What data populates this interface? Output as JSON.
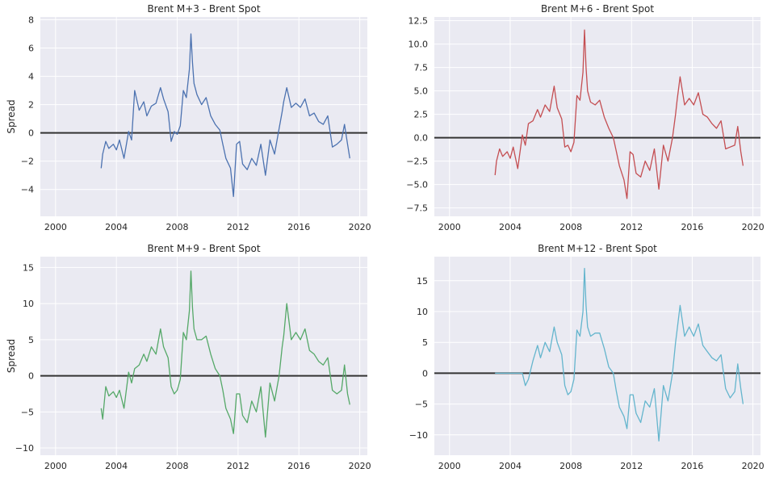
{
  "chart_data": [
    {
      "type": "line",
      "title": "Brent M+3 - Brent Spot",
      "ylabel": "Spread",
      "xlabel": "",
      "x_range": [
        1999.0,
        2020.5
      ],
      "ylim": [
        -5.9,
        8.2
      ],
      "x_ticks": [
        2000,
        2004,
        2008,
        2012,
        2016,
        2020
      ],
      "x_tick_labels": [
        "2000",
        "2004",
        "2008",
        "2012",
        "2016",
        "2020"
      ],
      "y_ticks": [
        -4,
        -2,
        0,
        2,
        4,
        6,
        8
      ],
      "y_tick_labels": [
        "−4",
        "−2",
        "0",
        "2",
        "4",
        "6",
        "8"
      ],
      "grid": true,
      "reference_line_y": 0,
      "color": "#4C72B0",
      "series": [
        {
          "x": [
            2003.0,
            2003.1,
            2003.3,
            2003.5,
            2003.8,
            2004.0,
            2004.2,
            2004.5,
            2004.8,
            2005.0,
            2005.2,
            2005.5,
            2005.8,
            2006.0,
            2006.3,
            2006.6,
            2006.9,
            2007.1,
            2007.4,
            2007.6,
            2007.8,
            2008.0,
            2008.2,
            2008.4,
            2008.6,
            2008.8,
            2008.9,
            2009.0,
            2009.1,
            2009.3,
            2009.6,
            2009.9,
            2010.2,
            2010.5,
            2010.8,
            2011.0,
            2011.2,
            2011.5,
            2011.7,
            2011.9,
            2012.1,
            2012.3,
            2012.6,
            2012.9,
            2013.2,
            2013.5,
            2013.8,
            2014.1,
            2014.4,
            2014.7,
            2014.9,
            2015.0,
            2015.2,
            2015.5,
            2015.8,
            2016.1,
            2016.4,
            2016.7,
            2017.0,
            2017.3,
            2017.6,
            2017.9,
            2018.2,
            2018.5,
            2018.8,
            2019.0,
            2019.2,
            2019.35
          ],
          "y": [
            -2.5,
            -1.5,
            -0.6,
            -1.1,
            -0.8,
            -1.2,
            -0.5,
            -1.8,
            0.1,
            -0.5,
            3.0,
            1.6,
            2.2,
            1.2,
            1.9,
            2.1,
            3.2,
            2.4,
            1.5,
            -0.6,
            0.1,
            -0.1,
            0.5,
            3.0,
            2.5,
            4.5,
            7.0,
            5.0,
            3.5,
            2.7,
            2.0,
            2.5,
            1.2,
            0.6,
            0.2,
            -0.8,
            -1.8,
            -2.5,
            -4.5,
            -0.8,
            -0.6,
            -2.2,
            -2.6,
            -1.8,
            -2.3,
            -0.8,
            -3.0,
            -0.5,
            -1.5,
            0.3,
            1.5,
            2.2,
            3.2,
            1.8,
            2.1,
            1.8,
            2.4,
            1.2,
            1.4,
            0.8,
            0.6,
            1.2,
            -1.0,
            -0.8,
            -0.5,
            0.6,
            -0.8,
            -1.8
          ]
        }
      ]
    },
    {
      "type": "line",
      "title": "Brent M+6 - Brent Spot",
      "ylabel": "",
      "xlabel": "",
      "x_range": [
        1999.0,
        2020.5
      ],
      "ylim": [
        -8.4,
        12.9
      ],
      "x_ticks": [
        2000,
        2004,
        2008,
        2012,
        2016,
        2020
      ],
      "x_tick_labels": [
        "2000",
        "2004",
        "2008",
        "2012",
        "2016",
        "2020"
      ],
      "y_ticks": [
        -7.5,
        -5.0,
        -2.5,
        0.0,
        2.5,
        5.0,
        7.5,
        10.0,
        12.5
      ],
      "y_tick_labels": [
        "−7.5",
        "−5.0",
        "−2.5",
        "0.0",
        "2.5",
        "5.0",
        "7.5",
        "10.0",
        "12.5"
      ],
      "grid": true,
      "reference_line_y": 0,
      "color": "#C44E52",
      "series": [
        {
          "x": [
            2003.0,
            2003.1,
            2003.3,
            2003.5,
            2003.8,
            2004.0,
            2004.2,
            2004.5,
            2004.8,
            2005.0,
            2005.2,
            2005.5,
            2005.8,
            2006.0,
            2006.3,
            2006.6,
            2006.9,
            2007.1,
            2007.4,
            2007.6,
            2007.8,
            2008.0,
            2008.2,
            2008.4,
            2008.6,
            2008.8,
            2008.9,
            2009.0,
            2009.1,
            2009.3,
            2009.6,
            2009.9,
            2010.2,
            2010.5,
            2010.8,
            2011.0,
            2011.2,
            2011.5,
            2011.7,
            2011.9,
            2012.1,
            2012.3,
            2012.6,
            2012.9,
            2013.2,
            2013.5,
            2013.8,
            2014.1,
            2014.4,
            2014.7,
            2014.9,
            2015.0,
            2015.2,
            2015.5,
            2015.8,
            2016.1,
            2016.4,
            2016.7,
            2017.0,
            2017.3,
            2017.6,
            2017.9,
            2018.2,
            2018.5,
            2018.8,
            2019.0,
            2019.2,
            2019.35
          ],
          "y": [
            -4.0,
            -2.5,
            -1.2,
            -2.0,
            -1.5,
            -2.2,
            -1.0,
            -3.3,
            0.3,
            -0.8,
            1.5,
            1.8,
            3.0,
            2.2,
            3.5,
            2.8,
            5.5,
            3.2,
            2.0,
            -1.0,
            -0.8,
            -1.5,
            -0.5,
            4.5,
            4.0,
            7.0,
            11.5,
            7.5,
            5.0,
            3.8,
            3.5,
            4.0,
            2.2,
            1.0,
            0.0,
            -1.5,
            -3.0,
            -4.5,
            -6.5,
            -1.5,
            -1.8,
            -3.8,
            -4.2,
            -2.5,
            -3.5,
            -1.2,
            -5.5,
            -0.8,
            -2.5,
            0.0,
            2.5,
            4.0,
            6.5,
            3.5,
            4.2,
            3.5,
            4.8,
            2.5,
            2.2,
            1.5,
            1.0,
            1.8,
            -1.2,
            -1.0,
            -0.8,
            1.2,
            -1.5,
            -3.0
          ]
        }
      ]
    },
    {
      "type": "line",
      "title": "Brent M+9 - Brent Spot",
      "ylabel": "Spread",
      "xlabel": "",
      "x_range": [
        1999.0,
        2020.5
      ],
      "ylim": [
        -11.0,
        16.5
      ],
      "x_ticks": [
        2000,
        2004,
        2008,
        2012,
        2016,
        2020
      ],
      "x_tick_labels": [
        "2000",
        "2004",
        "2008",
        "2012",
        "2016",
        "2020"
      ],
      "y_ticks": [
        -10,
        -5,
        0,
        5,
        10,
        15
      ],
      "y_tick_labels": [
        "−10",
        "−5",
        "0",
        "5",
        "10",
        "15"
      ],
      "grid": true,
      "reference_line_y": 0,
      "color": "#55A868",
      "series": [
        {
          "x": [
            2003.0,
            2003.1,
            2003.3,
            2003.5,
            2003.8,
            2004.0,
            2004.2,
            2004.5,
            2004.8,
            2005.0,
            2005.2,
            2005.5,
            2005.8,
            2006.0,
            2006.3,
            2006.6,
            2006.9,
            2007.1,
            2007.4,
            2007.6,
            2007.8,
            2008.0,
            2008.2,
            2008.4,
            2008.6,
            2008.8,
            2008.9,
            2009.0,
            2009.1,
            2009.3,
            2009.6,
            2009.9,
            2010.2,
            2010.5,
            2010.8,
            2011.0,
            2011.2,
            2011.5,
            2011.7,
            2011.9,
            2012.1,
            2012.3,
            2012.6,
            2012.9,
            2013.2,
            2013.5,
            2013.8,
            2014.1,
            2014.4,
            2014.7,
            2014.9,
            2015.0,
            2015.2,
            2015.5,
            2015.8,
            2016.1,
            2016.4,
            2016.7,
            2017.0,
            2017.3,
            2017.6,
            2017.9,
            2018.2,
            2018.5,
            2018.8,
            2019.0,
            2019.2,
            2019.35
          ],
          "y": [
            -4.5,
            -6.0,
            -1.5,
            -2.8,
            -2.2,
            -3.0,
            -2.0,
            -4.5,
            0.5,
            -1.0,
            1.0,
            1.5,
            3.0,
            2.0,
            4.0,
            3.0,
            6.5,
            4.0,
            2.5,
            -1.5,
            -2.5,
            -2.0,
            -0.5,
            6.0,
            5.0,
            9.0,
            14.5,
            9.5,
            6.5,
            5.0,
            5.0,
            5.5,
            3.0,
            1.0,
            0.0,
            -2.0,
            -4.5,
            -6.0,
            -8.0,
            -2.5,
            -2.5,
            -5.5,
            -6.5,
            -3.5,
            -5.0,
            -1.5,
            -8.5,
            -1.0,
            -3.5,
            0.0,
            4.0,
            5.5,
            10.0,
            5.0,
            6.0,
            5.0,
            6.5,
            3.5,
            3.0,
            2.0,
            1.5,
            2.5,
            -2.0,
            -2.5,
            -2.0,
            1.5,
            -2.5,
            -4.0
          ]
        }
      ]
    },
    {
      "type": "line",
      "title": "Brent M+12 - Brent Spot",
      "ylabel": "",
      "xlabel": "",
      "x_range": [
        1999.0,
        2020.5
      ],
      "ylim": [
        -13.3,
        18.9
      ],
      "x_ticks": [
        2000,
        2004,
        2008,
        2012,
        2016,
        2020
      ],
      "x_tick_labels": [
        "2000",
        "2004",
        "2008",
        "2012",
        "2016",
        "2020"
      ],
      "y_ticks": [
        -10,
        -5,
        0,
        5,
        10,
        15
      ],
      "y_tick_labels": [
        "−10",
        "−5",
        "0",
        "5",
        "10",
        "15"
      ],
      "grid": true,
      "reference_line_y": 0,
      "color": "#64B5CD",
      "series": [
        {
          "x": [
            2003.0,
            2003.5,
            2004.0,
            2004.5,
            2004.8,
            2005.0,
            2005.2,
            2005.5,
            2005.8,
            2006.0,
            2006.3,
            2006.6,
            2006.9,
            2007.1,
            2007.4,
            2007.6,
            2007.8,
            2008.0,
            2008.2,
            2008.4,
            2008.6,
            2008.8,
            2008.9,
            2009.0,
            2009.1,
            2009.3,
            2009.6,
            2009.9,
            2010.2,
            2010.5,
            2010.8,
            2011.0,
            2011.2,
            2011.5,
            2011.7,
            2011.9,
            2012.1,
            2012.3,
            2012.6,
            2012.9,
            2013.2,
            2013.5,
            2013.8,
            2014.1,
            2014.4,
            2014.7,
            2014.9,
            2015.0,
            2015.2,
            2015.5,
            2015.8,
            2016.1,
            2016.4,
            2016.7,
            2017.0,
            2017.3,
            2017.6,
            2017.9,
            2018.2,
            2018.5,
            2018.8,
            2019.0,
            2019.2,
            2019.35
          ],
          "y": [
            0.0,
            0.0,
            0.0,
            0.0,
            0.0,
            -2.0,
            -1.0,
            2.0,
            4.5,
            2.5,
            5.0,
            3.5,
            7.5,
            5.0,
            3.0,
            -2.0,
            -3.5,
            -3.0,
            -1.0,
            7.0,
            6.0,
            10.0,
            17.0,
            11.0,
            7.5,
            6.0,
            6.5,
            6.5,
            4.0,
            1.0,
            0.0,
            -3.0,
            -5.5,
            -7.0,
            -9.0,
            -3.5,
            -3.5,
            -6.5,
            -8.0,
            -4.5,
            -5.5,
            -2.5,
            -11.0,
            -2.0,
            -4.5,
            0.0,
            5.0,
            7.0,
            11.0,
            6.0,
            7.5,
            6.0,
            8.0,
            4.5,
            3.5,
            2.5,
            2.0,
            3.0,
            -2.5,
            -4.0,
            -3.0,
            1.5,
            -2.5,
            -5.0
          ]
        }
      ]
    }
  ]
}
